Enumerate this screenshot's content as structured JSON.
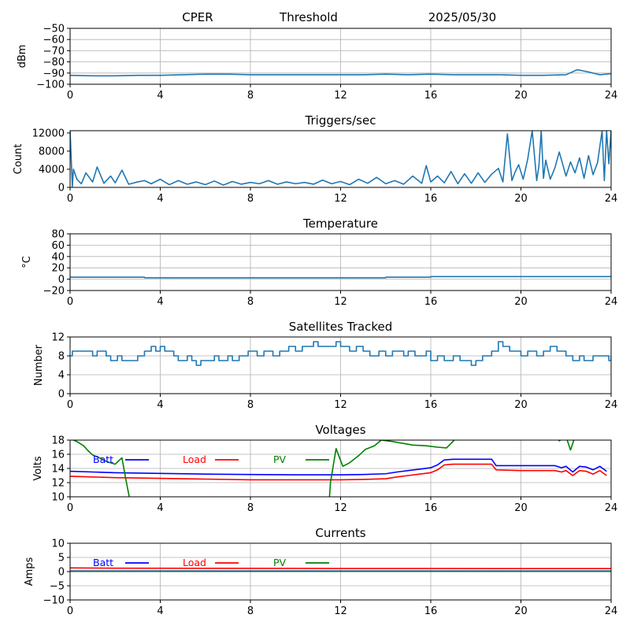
{
  "header": {
    "station": "CPER",
    "mode": "Threshold",
    "date": "2025/05/30"
  },
  "colors": {
    "series": "#1f77b4",
    "grid": "#b0b0b0",
    "batt": "#0000ff",
    "load": "#ff0000",
    "pv": "#008000",
    "axis": "#000000"
  },
  "chart_data": [
    {
      "id": "noise",
      "type": "line",
      "title": "",
      "xlabel": "",
      "ylabel": "dBm",
      "xlim": [
        0,
        24
      ],
      "ylim": [
        -100,
        -50
      ],
      "grid": true,
      "xticks": [
        0,
        4,
        8,
        12,
        16,
        20,
        24
      ],
      "xtick_labels": [
        "0",
        "4",
        "8",
        "12",
        "16",
        "20",
        "24"
      ],
      "yticks": [
        -100,
        -90,
        -80,
        -70,
        -60,
        -50
      ],
      "ytick_labels": [
        "−100",
        "−90",
        "−80",
        "−70",
        "−60",
        "−50"
      ],
      "series": [
        {
          "color": "#1f77b4",
          "x": [
            0,
            1,
            2,
            3,
            4,
            5,
            6,
            7,
            8,
            9,
            10,
            11,
            12,
            13,
            14,
            15,
            16,
            17,
            18,
            19,
            20,
            21,
            22,
            22.5,
            23,
            23.5,
            24
          ],
          "y": [
            -92,
            -92.5,
            -92.5,
            -92,
            -92,
            -91.5,
            -91,
            -91,
            -91.5,
            -91.5,
            -91.5,
            -91.5,
            -91.5,
            -91.5,
            -91,
            -91.5,
            -91,
            -91.5,
            -91.5,
            -91.5,
            -92,
            -92,
            -91.5,
            -87,
            -89,
            -91.5,
            -90.5
          ]
        }
      ]
    },
    {
      "id": "triggers",
      "type": "line",
      "title": "Triggers/sec",
      "xlabel": "",
      "ylabel": "Count",
      "xlim": [
        0,
        24
      ],
      "ylim": [
        0,
        12500
      ],
      "grid": false,
      "xticks": [
        0,
        4,
        8,
        12,
        16,
        20,
        24
      ],
      "xtick_labels": [
        "0",
        "4",
        "8",
        "12",
        "16",
        "20",
        "24"
      ],
      "yticks": [
        0,
        4000,
        8000,
        12000
      ],
      "ytick_labels": [
        "0",
        "4000",
        "8000",
        "12000"
      ],
      "series": [
        {
          "color": "#1f77b4",
          "x": [
            0,
            0.1,
            0.15,
            0.3,
            0.5,
            0.7,
            1,
            1.2,
            1.5,
            1.8,
            2,
            2.3,
            2.6,
            3,
            3.3,
            3.6,
            4,
            4.4,
            4.8,
            5.2,
            5.6,
            6,
            6.4,
            6.8,
            7.2,
            7.6,
            8,
            8.4,
            8.8,
            9.2,
            9.6,
            10,
            10.4,
            10.8,
            11.2,
            11.6,
            12,
            12.4,
            12.8,
            13.2,
            13.6,
            14,
            14.4,
            14.8,
            15.2,
            15.6,
            15.8,
            16,
            16.3,
            16.6,
            16.9,
            17.2,
            17.5,
            17.8,
            18.1,
            18.4,
            18.7,
            19,
            19.2,
            19.4,
            19.6,
            19.75,
            19.9,
            20.1,
            20.3,
            20.5,
            20.7,
            20.8,
            20.9,
            21,
            21.1,
            21.3,
            21.5,
            21.7,
            22,
            22.2,
            22.4,
            22.6,
            22.8,
            23,
            23.2,
            23.4,
            23.6,
            23.7,
            23.8,
            23.9,
            24
          ],
          "y": [
            12500,
            200,
            4000,
            1800,
            800,
            3200,
            1200,
            4500,
            900,
            2500,
            1000,
            3800,
            700,
            1200,
            1500,
            800,
            1800,
            600,
            1500,
            700,
            1200,
            600,
            1400,
            500,
            1300,
            700,
            1100,
            800,
            1500,
            700,
            1200,
            800,
            1100,
            700,
            1600,
            800,
            1300,
            600,
            1800,
            900,
            2200,
            800,
            1500,
            700,
            2500,
            900,
            4800,
            1200,
            2500,
            1000,
            3500,
            800,
            3000,
            900,
            3200,
            1100,
            2900,
            4200,
            1200,
            11800,
            1500,
            3500,
            5000,
            1800,
            6200,
            12500,
            1500,
            4800,
            12500,
            2000,
            6000,
            1800,
            4200,
            7800,
            2500,
            5600,
            3200,
            6500,
            2000,
            7000,
            2800,
            5500,
            12500,
            1500,
            12500,
            5200,
            12500
          ]
        }
      ]
    },
    {
      "id": "temperature",
      "type": "line",
      "title": "Temperature",
      "xlabel": "",
      "ylabel": "°C",
      "xlim": [
        0,
        24
      ],
      "ylim": [
        -20,
        80
      ],
      "grid": true,
      "xticks": [
        0,
        4,
        8,
        12,
        16,
        20,
        24
      ],
      "xtick_labels": [
        "0",
        "4",
        "8",
        "12",
        "16",
        "20",
        "24"
      ],
      "yticks": [
        -20,
        0,
        20,
        40,
        60,
        80
      ],
      "ytick_labels": [
        "−20",
        "0",
        "20",
        "40",
        "60",
        "80"
      ],
      "series": [
        {
          "color": "#1f77b4",
          "x": [
            0,
            3.3,
            3.31,
            14,
            14.01,
            16,
            16.01,
            24
          ],
          "y": [
            3.5,
            3.5,
            2.5,
            2.5,
            3.5,
            3.5,
            4.5,
            4.5
          ]
        }
      ]
    },
    {
      "id": "satellites",
      "type": "line",
      "title": "Satellites Tracked",
      "xlabel": "",
      "ylabel": "Number",
      "xlim": [
        0,
        24
      ],
      "ylim": [
        0,
        12
      ],
      "grid": true,
      "xticks": [
        0,
        4,
        8,
        12,
        16,
        20,
        24
      ],
      "xtick_labels": [
        "0",
        "4",
        "8",
        "12",
        "16",
        "20",
        "24"
      ],
      "yticks": [
        0,
        4,
        8,
        12
      ],
      "ytick_labels": [
        "0",
        "4",
        "8",
        "12"
      ],
      "series": [
        {
          "color": "#1f77b4",
          "step": true,
          "x": [
            0,
            0.1,
            0.6,
            1,
            1.2,
            1.6,
            1.8,
            2.1,
            2.3,
            3,
            3.3,
            3.6,
            3.8,
            4,
            4.2,
            4.6,
            4.8,
            5.2,
            5.4,
            5.6,
            5.8,
            6.4,
            6.6,
            7,
            7.2,
            7.5,
            7.9,
            8.3,
            8.6,
            9,
            9.3,
            9.7,
            10,
            10.3,
            10.8,
            11,
            11.5,
            11.8,
            12,
            12.4,
            12.7,
            13,
            13.3,
            13.7,
            14,
            14.3,
            14.8,
            15,
            15.3,
            15.8,
            16,
            16.3,
            16.6,
            17,
            17.3,
            17.8,
            18,
            18.3,
            18.7,
            19,
            19.2,
            19.5,
            20,
            20.3,
            20.7,
            21,
            21.3,
            21.6,
            22,
            22.3,
            22.6,
            22.8,
            23.2,
            23.6,
            23.9,
            24
          ],
          "y": [
            8,
            9,
            9,
            8,
            9,
            8,
            7,
            8,
            7,
            8,
            9,
            10,
            9,
            10,
            9,
            8,
            7,
            8,
            7,
            6,
            7,
            8,
            7,
            8,
            7,
            8,
            9,
            8,
            9,
            8,
            9,
            10,
            9,
            10,
            11,
            10,
            10,
            11,
            10,
            9,
            10,
            9,
            8,
            9,
            8,
            9,
            8,
            9,
            8,
            9,
            7,
            8,
            7,
            8,
            7,
            6,
            7,
            8,
            9,
            11,
            10,
            9,
            8,
            9,
            8,
            9,
            10,
            9,
            8,
            7,
            8,
            7,
            8,
            8,
            7,
            8
          ]
        }
      ]
    },
    {
      "id": "voltages",
      "type": "line",
      "title": "Voltages",
      "xlabel": "",
      "ylabel": "Volts",
      "xlim": [
        0,
        24
      ],
      "ylim": [
        10,
        18
      ],
      "grid": true,
      "xticks": [
        0,
        4,
        8,
        12,
        16,
        20,
        24
      ],
      "xtick_labels": [
        "0",
        "4",
        "8",
        "12",
        "16",
        "20",
        "24"
      ],
      "yticks": [
        10,
        12,
        14,
        16,
        18
      ],
      "ytick_labels": [
        "10",
        "12",
        "14",
        "16",
        "18"
      ],
      "legend": [
        "Batt",
        "Load",
        "PV"
      ],
      "series": [
        {
          "name": "Batt",
          "color": "#0000ff",
          "x": [
            0,
            1,
            2,
            4,
            6,
            8,
            10,
            12,
            13,
            14,
            14.5,
            15,
            15.5,
            16,
            16.3,
            16.6,
            17,
            18,
            18.7,
            18.9,
            20,
            21,
            21.5,
            21.8,
            22,
            22.3,
            22.6,
            22.9,
            23.2,
            23.5,
            23.8
          ],
          "y": [
            13.6,
            13.5,
            13.4,
            13.3,
            13.2,
            13.15,
            13.1,
            13.1,
            13.15,
            13.25,
            13.5,
            13.7,
            13.9,
            14.1,
            14.5,
            15.2,
            15.3,
            15.3,
            15.3,
            14.4,
            14.4,
            14.4,
            14.4,
            14.1,
            14.3,
            13.5,
            14.3,
            14.2,
            13.8,
            14.3,
            13.6
          ]
        },
        {
          "name": "Load",
          "color": "#ff0000",
          "x": [
            0,
            1,
            2,
            4,
            6,
            8,
            10,
            12,
            13,
            14,
            14.5,
            15,
            15.5,
            16,
            16.3,
            16.6,
            17,
            18,
            18.7,
            18.9,
            20,
            21,
            21.5,
            21.8,
            22,
            22.3,
            22.6,
            22.9,
            23.2,
            23.5,
            23.8
          ],
          "y": [
            12.9,
            12.8,
            12.7,
            12.6,
            12.5,
            12.4,
            12.4,
            12.4,
            12.45,
            12.55,
            12.8,
            13.0,
            13.2,
            13.4,
            13.8,
            14.5,
            14.6,
            14.6,
            14.6,
            13.8,
            13.7,
            13.7,
            13.7,
            13.5,
            13.7,
            13.0,
            13.7,
            13.6,
            13.2,
            13.7,
            13.0
          ]
        },
        {
          "name": "PV",
          "color": "#008000",
          "x": [
            0,
            0.3,
            0.6,
            0.8,
            1,
            1.3,
            1.6,
            2,
            2.3,
            2.5,
            2.65
          ],
          "y": [
            18.2,
            17.8,
            17.2,
            16.5,
            15.9,
            15.5,
            15.0,
            14.6,
            15.5,
            12.0,
            9.6
          ],
          "extra": [
            {
              "x": [
                11.5,
                11.55,
                11.8,
                12.1,
                12.4,
                12.8,
                13.1,
                13.5,
                13.8,
                14.3,
                15.2,
                15.8,
                16.3,
                16.7,
                17.2
              ],
              "y": [
                9.6,
                12.0,
                16.8,
                14.3,
                14.8,
                15.8,
                16.7,
                17.2,
                18.0,
                17.8,
                17.3,
                17.2,
                17.0,
                16.9,
                18.5
              ]
            },
            {
              "x": [
                21.5,
                21.7,
                22.0,
                22.2,
                22.4
              ],
              "y": [
                18.5,
                17.9,
                18.5,
                16.6,
                18.5
              ]
            }
          ]
        }
      ]
    },
    {
      "id": "currents",
      "type": "line",
      "title": "Currents",
      "xlabel": "",
      "ylabel": "Amps",
      "xlim": [
        0,
        24
      ],
      "ylim": [
        -10,
        10
      ],
      "grid": true,
      "xticks": [
        0,
        4,
        8,
        12,
        16,
        20,
        24
      ],
      "xtick_labels": [
        "0",
        "4",
        "8",
        "12",
        "16",
        "20",
        "24"
      ],
      "yticks": [
        -10,
        -5,
        0,
        5,
        10
      ],
      "ytick_labels": [
        "−10",
        "−5",
        "0",
        "5",
        "10"
      ],
      "legend": [
        "Batt",
        "Load",
        "PV"
      ],
      "series": [
        {
          "name": "Batt",
          "color": "#0000ff",
          "x": [
            0,
            24
          ],
          "y": [
            0.2,
            0.2
          ]
        },
        {
          "name": "Load",
          "color": "#ff0000",
          "x": [
            0,
            2,
            6,
            12,
            16,
            20,
            24
          ],
          "y": [
            1.3,
            1.2,
            1.15,
            1.1,
            1.1,
            1.05,
            1.05
          ]
        },
        {
          "name": "PV",
          "color": "#008000",
          "x": [
            0,
            24
          ],
          "y": [
            0.1,
            0.1
          ]
        }
      ]
    }
  ]
}
